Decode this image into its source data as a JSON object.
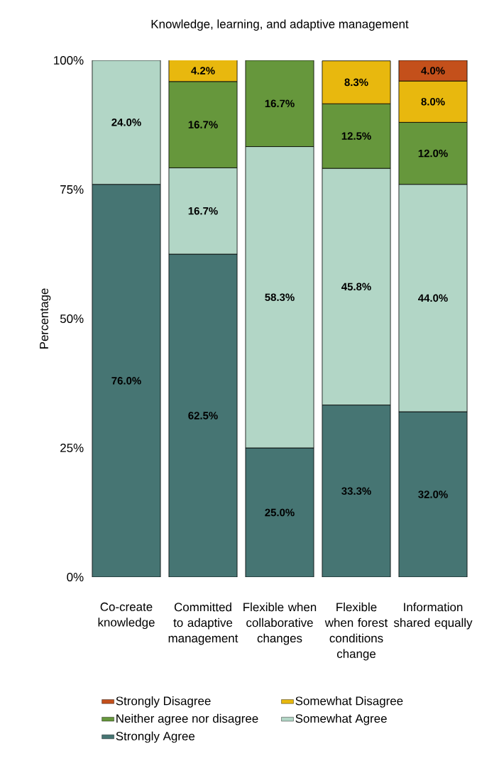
{
  "chart_data": {
    "type": "bar",
    "stacked": true,
    "title": "Knowledge, learning, and adaptive management",
    "ylabel": "Percentage",
    "categories": [
      "Co-create knowledge",
      "Committed to adaptive management",
      "Flexible when collaborative changes",
      "Flexible when forest conditions change",
      "Information shared equally"
    ],
    "ylim": [
      0,
      100
    ],
    "yticks": [
      {
        "value": 0,
        "label": "0%"
      },
      {
        "value": 25,
        "label": "25%"
      },
      {
        "value": 50,
        "label": "50%"
      },
      {
        "value": 75,
        "label": "75%"
      },
      {
        "value": 100,
        "label": "100%"
      }
    ],
    "legend": "bottom",
    "series": [
      {
        "name": "Strongly Agree",
        "color": "#467573",
        "values": [
          76.0,
          62.5,
          25.0,
          33.3,
          32.0
        ],
        "value_labels": [
          "76.0%",
          "62.5%",
          "25.0%",
          "33.3%",
          "32.0%"
        ]
      },
      {
        "name": "Somewhat Agree",
        "color": "#b2d6c6",
        "values": [
          24.0,
          16.7,
          58.3,
          45.8,
          44.0
        ],
        "value_labels": [
          "24.0%",
          "16.7%",
          "58.3%",
          "45.8%",
          "44.0%"
        ]
      },
      {
        "name": "Neither agree nor disagree",
        "color": "#66973c",
        "values": [
          null,
          16.7,
          16.7,
          12.5,
          12.0
        ],
        "value_labels": [
          null,
          "16.7%",
          "16.7%",
          "12.5%",
          "12.0%"
        ]
      },
      {
        "name": "Somewhat Disagree",
        "color": "#e8b80e",
        "values": [
          null,
          4.2,
          null,
          8.3,
          8.0
        ],
        "value_labels": [
          null,
          "4.2%",
          null,
          "8.3%",
          "8.0%"
        ]
      },
      {
        "name": "Strongly Disagree",
        "color": "#c4501b",
        "values": [
          null,
          null,
          null,
          null,
          4.0
        ],
        "value_labels": [
          null,
          null,
          null,
          null,
          "4.0%"
        ]
      }
    ]
  }
}
